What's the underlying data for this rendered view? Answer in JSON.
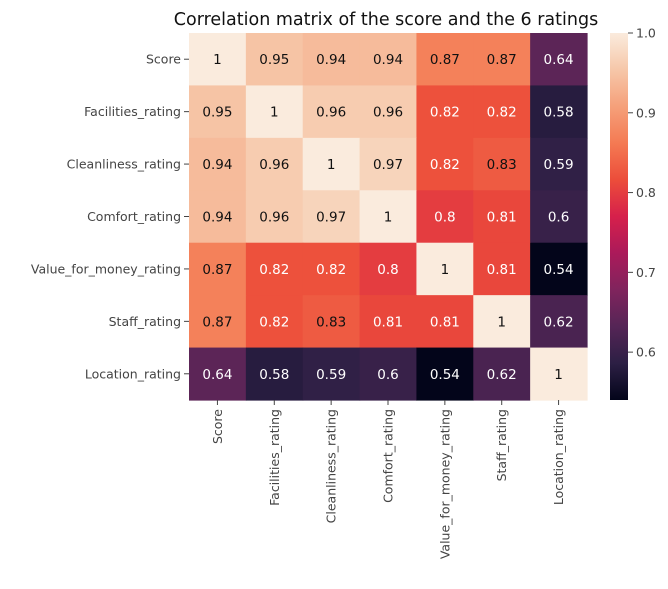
{
  "chart_data": {
    "type": "heatmap",
    "title": "Correlation matrix of the score and the 6 ratings",
    "row_labels": [
      "Score",
      "Facilities_rating",
      "Cleanliness_rating",
      "Comfort_rating",
      "Value_for_money_rating",
      "Staff_rating",
      "Location_rating"
    ],
    "col_labels": [
      "Score",
      "Facilities_rating",
      "Cleanliness_rating",
      "Comfort_rating",
      "Value_for_money_rating",
      "Staff_rating",
      "Location_rating"
    ],
    "values": [
      [
        1,
        0.95,
        0.94,
        0.94,
        0.87,
        0.87,
        0.64
      ],
      [
        0.95,
        1,
        0.96,
        0.96,
        0.82,
        0.82,
        0.58
      ],
      [
        0.94,
        0.96,
        1,
        0.97,
        0.82,
        0.83,
        0.59
      ],
      [
        0.94,
        0.96,
        0.97,
        1,
        0.8,
        0.81,
        0.6
      ],
      [
        0.87,
        0.82,
        0.82,
        0.8,
        1,
        0.81,
        0.54
      ],
      [
        0.87,
        0.82,
        0.83,
        0.81,
        0.81,
        1,
        0.62
      ],
      [
        0.64,
        0.58,
        0.59,
        0.6,
        0.54,
        0.62,
        1
      ]
    ],
    "colorbar": {
      "min": 0.54,
      "max": 1.0,
      "ticks": [
        0.6,
        0.7,
        0.8,
        0.9,
        1.0
      ],
      "tick_labels": [
        "0.6",
        "0.7",
        "0.8",
        "0.9",
        "1.0"
      ],
      "colormap": "rocket"
    },
    "annotations": true,
    "grid": false
  }
}
